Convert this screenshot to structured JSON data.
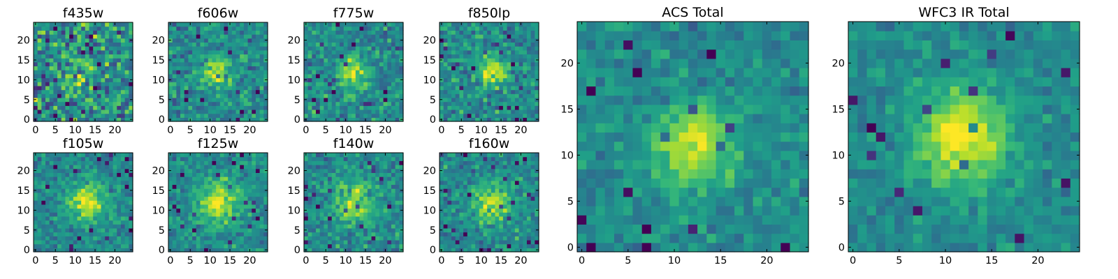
{
  "chart_data": [
    {
      "type": "heatmap",
      "title": "f435w",
      "colormap": "viridis",
      "grid": false,
      "x_range": [
        0,
        24
      ],
      "y_range": [
        0,
        24
      ],
      "x_ticks": [
        "0",
        "5",
        "10",
        "15",
        "20"
      ],
      "y_ticks": [
        "0",
        "5",
        "10",
        "15",
        "20"
      ],
      "source_center": [
        12,
        12
      ],
      "source_peak": 0.15,
      "source_sigma": 3.5,
      "noise_level": 0.5,
      "seed": 11
    },
    {
      "type": "heatmap",
      "title": "f606w",
      "colormap": "viridis",
      "grid": false,
      "x_range": [
        0,
        24
      ],
      "y_range": [
        0,
        24
      ],
      "x_ticks": [
        "0",
        "5",
        "10",
        "15",
        "20"
      ],
      "y_ticks": [
        "0",
        "5",
        "10",
        "15",
        "20"
      ],
      "source_center": [
        12,
        12
      ],
      "source_peak": 0.45,
      "source_sigma": 2.6,
      "noise_level": 0.3,
      "seed": 23
    },
    {
      "type": "heatmap",
      "title": "f775w",
      "colormap": "viridis",
      "grid": false,
      "x_range": [
        0,
        24
      ],
      "y_range": [
        0,
        24
      ],
      "x_ticks": [
        "0",
        "5",
        "10",
        "15",
        "20"
      ],
      "y_ticks": [
        "0",
        "5",
        "10",
        "15",
        "20"
      ],
      "source_center": [
        12,
        12
      ],
      "source_peak": 0.4,
      "source_sigma": 2.8,
      "noise_level": 0.3,
      "seed": 37
    },
    {
      "type": "heatmap",
      "title": "f850lp",
      "colormap": "viridis",
      "grid": false,
      "x_range": [
        0,
        24
      ],
      "y_range": [
        0,
        24
      ],
      "x_ticks": [
        "0",
        "5",
        "10",
        "15",
        "20"
      ],
      "y_ticks": [
        "0",
        "5",
        "10",
        "15",
        "20"
      ],
      "source_center": [
        13,
        12
      ],
      "source_peak": 0.4,
      "source_sigma": 2.6,
      "noise_level": 0.3,
      "seed": 41
    },
    {
      "type": "heatmap",
      "title": "f105w",
      "colormap": "viridis",
      "grid": false,
      "x_range": [
        0,
        24
      ],
      "y_range": [
        0,
        24
      ],
      "x_ticks": [
        "0",
        "5",
        "10",
        "15",
        "20"
      ],
      "y_ticks": [
        "0",
        "5",
        "10",
        "15",
        "20"
      ],
      "source_center": [
        13,
        12
      ],
      "source_peak": 0.45,
      "source_sigma": 3.2,
      "noise_level": 0.25,
      "seed": 53
    },
    {
      "type": "heatmap",
      "title": "f125w",
      "colormap": "viridis",
      "grid": false,
      "x_range": [
        0,
        24
      ],
      "y_range": [
        0,
        24
      ],
      "x_ticks": [
        "0",
        "5",
        "10",
        "15",
        "20"
      ],
      "y_ticks": [
        "0",
        "5",
        "10",
        "15",
        "20"
      ],
      "source_center": [
        12,
        12
      ],
      "source_peak": 0.45,
      "source_sigma": 3.8,
      "noise_level": 0.25,
      "seed": 67
    },
    {
      "type": "heatmap",
      "title": "f140w",
      "colormap": "viridis",
      "grid": false,
      "x_range": [
        0,
        24
      ],
      "y_range": [
        0,
        24
      ],
      "x_ticks": [
        "0",
        "5",
        "10",
        "15",
        "20"
      ],
      "y_ticks": [
        "0",
        "5",
        "10",
        "15",
        "20"
      ],
      "source_center": [
        12,
        12
      ],
      "source_peak": 0.4,
      "source_sigma": 3.4,
      "noise_level": 0.28,
      "seed": 71
    },
    {
      "type": "heatmap",
      "title": "f160w",
      "colormap": "viridis",
      "grid": false,
      "x_range": [
        0,
        24
      ],
      "y_range": [
        0,
        24
      ],
      "x_ticks": [
        "0",
        "5",
        "10",
        "15",
        "20"
      ],
      "y_ticks": [
        "0",
        "5",
        "10",
        "15",
        "20"
      ],
      "source_center": [
        13,
        12
      ],
      "source_peak": 0.45,
      "source_sigma": 3.2,
      "noise_level": 0.28,
      "seed": 83
    },
    {
      "type": "heatmap",
      "title": "ACS Total",
      "colormap": "viridis",
      "grid": false,
      "x_range": [
        0,
        24
      ],
      "y_range": [
        0,
        24
      ],
      "x_ticks": [
        "0",
        "5",
        "10",
        "15",
        "20"
      ],
      "y_ticks": [
        "0",
        "5",
        "10",
        "15",
        "20"
      ],
      "source_center": [
        12,
        11
      ],
      "source_peak": 0.45,
      "source_sigma": 3.0,
      "noise_level": 0.2,
      "seed": 97
    },
    {
      "type": "heatmap",
      "title": "WFC3 IR Total",
      "colormap": "viridis",
      "grid": false,
      "x_range": [
        0,
        24
      ],
      "y_range": [
        0,
        24
      ],
      "x_ticks": [
        "0",
        "5",
        "10",
        "15",
        "20"
      ],
      "y_ticks": [
        "0",
        "5",
        "10",
        "15",
        "20"
      ],
      "source_center": [
        12,
        12
      ],
      "source_peak": 0.5,
      "source_sigma": 3.6,
      "noise_level": 0.18,
      "seed": 101
    }
  ]
}
